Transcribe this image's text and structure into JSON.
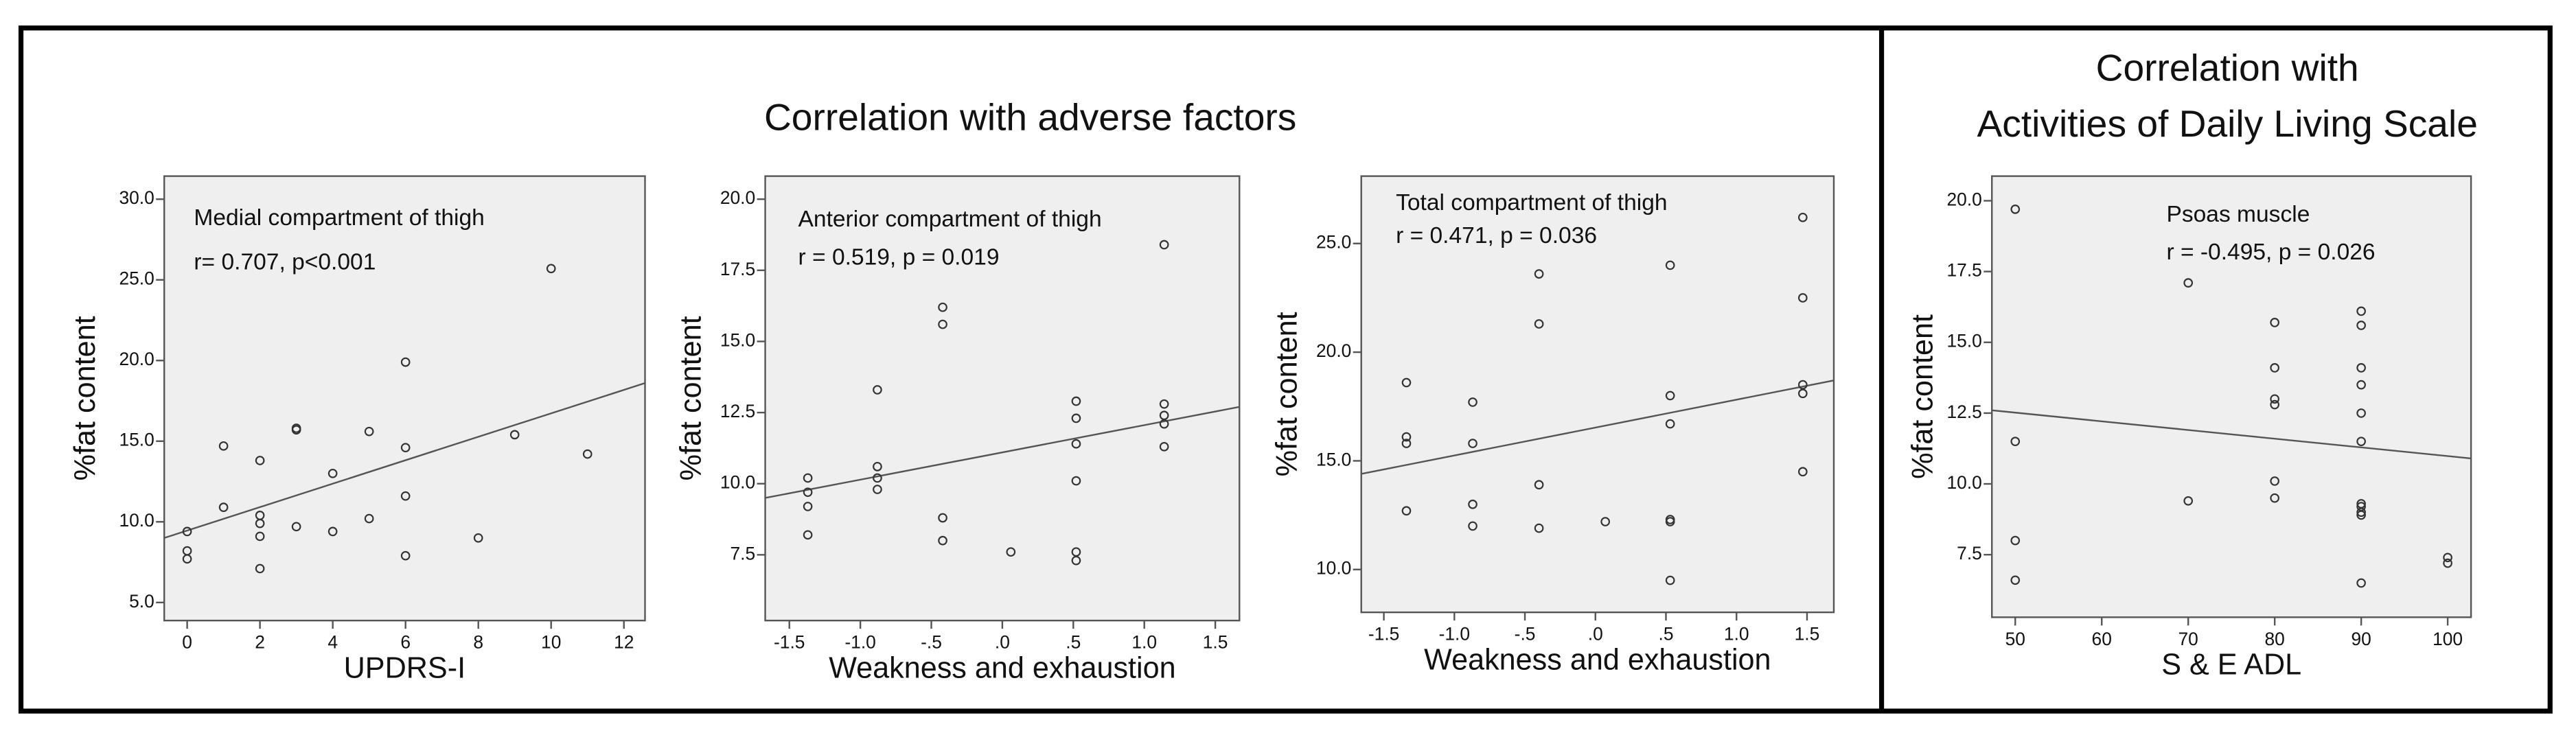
{
  "sections": [
    {
      "title_lines": [
        "Correlation with adverse factors"
      ]
    },
    {
      "title_lines": [
        "Correlation with",
        "Activities of Daily Living Scale"
      ]
    }
  ],
  "chart_data": [
    {
      "type": "scatter",
      "label": "Medial compartment of thigh",
      "stat": "r= 0.707, p<0.001",
      "xlabel": "UPDRS-I",
      "ylabel": "%fat content",
      "xlim": [
        -0.63,
        12.58
      ],
      "ylim": [
        3.88,
        31.43
      ],
      "xticks": [
        0,
        2,
        4,
        6,
        8,
        10,
        12
      ],
      "yticks": [
        {
          "value": 5,
          "label": "5.0"
        },
        {
          "value": 10,
          "label": "10.0"
        },
        {
          "value": 15,
          "label": "15.0"
        },
        {
          "value": 20,
          "label": "20.0"
        },
        {
          "value": 25,
          "label": "25.0"
        },
        {
          "value": 30,
          "label": "30.0"
        }
      ],
      "x": [
        0,
        0,
        0,
        1,
        1,
        2,
        2,
        2,
        2,
        2,
        3,
        3,
        3,
        4,
        4,
        5,
        5,
        6,
        6,
        6,
        6,
        8,
        9,
        10,
        11
      ],
      "values": [
        9.4,
        8.2,
        7.7,
        14.7,
        10.9,
        13.8,
        10.4,
        9.9,
        9.1,
        7.1,
        15.8,
        15.7,
        9.7,
        13.0,
        9.4,
        15.6,
        10.2,
        19.9,
        14.6,
        11.6,
        7.9,
        9.0,
        15.4,
        25.7,
        14.2
      ],
      "trend": {
        "x": [
          -0.63,
          12.58
        ],
        "y": [
          9.0,
          18.6
        ]
      },
      "color": "#333333"
    },
    {
      "type": "scatter",
      "label": "Anterior compartment of thigh",
      "stat": "r = 0.519, p = 0.019",
      "xlabel": "Weakness and exhaustion",
      "ylabel": "%fat content",
      "xlim": [
        -1.67,
        1.67
      ],
      "ylim": [
        5.19,
        20.81
      ],
      "xticks": [
        -1.5,
        {
          "value": -1,
          "label": "-1.0"
        },
        {
          "value": -0.5,
          "label": "-.5"
        },
        {
          "value": 0,
          "label": ".0"
        },
        {
          "value": 0.5,
          "label": ".5"
        },
        {
          "value": 1,
          "label": "1.0"
        },
        1.5
      ],
      "yticks": [
        7.5,
        {
          "value": 10,
          "label": "10.0"
        },
        12.5,
        {
          "value": 15,
          "label": "15.0"
        },
        17.5,
        {
          "value": 20,
          "label": "20.0"
        }
      ],
      "x": [
        -1.37,
        -1.37,
        -1.37,
        -1.37,
        -0.88,
        -0.88,
        -0.88,
        -0.88,
        -0.42,
        -0.42,
        -0.42,
        -0.42,
        0.06,
        0.52,
        0.52,
        0.52,
        0.52,
        0.52,
        0.52,
        1.14,
        1.14,
        1.14,
        1.14,
        1.14
      ],
      "values": [
        10.2,
        9.7,
        9.2,
        8.2,
        13.3,
        10.6,
        10.2,
        9.8,
        16.2,
        15.6,
        8.8,
        8.0,
        7.6,
        12.9,
        12.3,
        11.4,
        10.1,
        7.6,
        7.3,
        18.4,
        12.8,
        12.4,
        12.1,
        11.3
      ],
      "trend": {
        "x": [
          -1.67,
          1.67
        ],
        "y": [
          9.5,
          12.7
        ]
      },
      "color": "#333333"
    },
    {
      "type": "scatter",
      "label": "Total compartment of thigh",
      "stat": "r = 0.471, p = 0.036",
      "xlabel": "Weakness and exhaustion",
      "ylabel": "%fat content",
      "xlim": [
        -1.66,
        1.69
      ],
      "ylim": [
        8.03,
        28.1
      ],
      "xticks": [
        -1.5,
        {
          "value": -1,
          "label": "-1.0"
        },
        {
          "value": -0.5,
          "label": "-.5"
        },
        {
          "value": 0,
          "label": ".0"
        },
        {
          "value": 0.5,
          "label": ".5"
        },
        {
          "value": 1,
          "label": "1.0"
        },
        1.5
      ],
      "yticks": [
        {
          "value": 10,
          "label": "10.0"
        },
        {
          "value": 15,
          "label": "15.0"
        },
        {
          "value": 20,
          "label": "20.0"
        },
        {
          "value": 25,
          "label": "25.0"
        }
      ],
      "x": [
        -1.34,
        -1.34,
        -1.34,
        -1.34,
        -0.87,
        -0.87,
        -0.87,
        -0.87,
        -0.4,
        -0.4,
        -0.4,
        -0.4,
        0.07,
        0.53,
        0.53,
        0.53,
        0.53,
        0.53,
        0.53,
        1.47,
        1.47,
        1.47,
        1.47,
        1.47
      ],
      "values": [
        18.6,
        16.1,
        15.8,
        12.7,
        17.7,
        15.8,
        13.0,
        12.0,
        23.6,
        21.3,
        13.9,
        11.9,
        12.2,
        24.0,
        18.0,
        16.7,
        12.3,
        12.2,
        9.5,
        26.2,
        22.5,
        18.5,
        18.1,
        14.5
      ],
      "trend": {
        "x": [
          -1.66,
          1.69
        ],
        "y": [
          14.4,
          18.7
        ]
      },
      "color": "#333333"
    },
    {
      "type": "scatter",
      "label": "Psoas muscle",
      "stat": "r = -0.495, p = 0.026",
      "xlabel": "S & E ADL",
      "ylabel": "%fat content",
      "xlim": [
        47.3,
        102.7
      ],
      "ylim": [
        5.29,
        20.87
      ],
      "xticks": [
        50,
        60,
        70,
        80,
        90,
        100
      ],
      "yticks": [
        7.5,
        {
          "value": 10,
          "label": "10.0"
        },
        12.5,
        {
          "value": 15,
          "label": "15.0"
        },
        17.5,
        {
          "value": 20,
          "label": "20.0"
        }
      ],
      "x": [
        50,
        50,
        50,
        50,
        70,
        70,
        80,
        80,
        80,
        80,
        80,
        80,
        90,
        90,
        90,
        90,
        90,
        90,
        90,
        90,
        90,
        90,
        90,
        100,
        100
      ],
      "values": [
        19.7,
        11.5,
        8.0,
        6.6,
        17.1,
        9.4,
        15.7,
        14.1,
        13.0,
        12.8,
        10.1,
        9.5,
        16.1,
        15.6,
        14.1,
        13.5,
        12.5,
        11.5,
        9.3,
        9.2,
        9.0,
        8.9,
        6.5,
        7.4,
        7.2
      ],
      "trend": {
        "x": [
          47.3,
          102.7
        ],
        "y": [
          12.6,
          10.9
        ]
      },
      "color": "#333333"
    }
  ]
}
